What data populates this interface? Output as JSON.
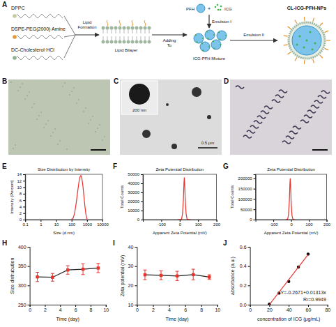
{
  "panel_labels": [
    "A",
    "B",
    "C",
    "D",
    "E",
    "F",
    "G",
    "H",
    "I",
    "J"
  ],
  "diagram": {
    "lipids": [
      "DPPC",
      "DSPE-PEG(2000) Amine",
      "DC-Cholesterol·HCl"
    ],
    "step1": "Lipid Formation",
    "bilayer": "Lipid Bilayer",
    "adding": "Adding To",
    "pfh": "PFH",
    "plus": "+",
    "icg": "ICG",
    "emulsion1": "Emulsion I",
    "mixture": "ICG-PFH Mixture",
    "emulsion2": "Emulsion II",
    "product": "CL-ICG-PFH-NPs"
  },
  "images": {
    "C": {
      "inset_scale": "200 nm",
      "scale_bar": "0.5 μm"
    }
  },
  "chart_data": [
    {
      "type": "line",
      "title": "Size Distribution by Intensity",
      "x_label": "Size (d.nm)",
      "y_label": "Intensity (Percent)",
      "log": "x",
      "x": [
        100,
        130,
        160,
        200,
        250,
        300,
        350,
        400,
        460,
        530,
        620,
        720,
        850,
        1000
      ],
      "series": [
        {
          "color": "#e8322b",
          "values": [
            0,
            0.6,
            2.2,
            5.2,
            8.8,
            11.6,
            13.2,
            13.6,
            12.8,
            10.8,
            7.6,
            4.4,
            1.6,
            0.2
          ]
        }
      ],
      "xlim": [
        0.1,
        10000
      ],
      "xticks": [
        0.1,
        1,
        10,
        100,
        1000,
        10000
      ],
      "ylim": [
        0,
        14
      ],
      "yticks": [
        0,
        2,
        4,
        6,
        8,
        10,
        12,
        14
      ]
    },
    {
      "type": "line",
      "title": "Zeta Potential Distribution",
      "x_label": "Apparent Zeta Potential (mV)",
      "y_label": "Total Counts",
      "x": [
        -10,
        0,
        10,
        15,
        20,
        23,
        25,
        27,
        30,
        35,
        40,
        50,
        60
      ],
      "series": [
        {
          "color": "#e8322b",
          "values": [
            0,
            0,
            600,
            6000,
            22000,
            40000,
            46500,
            40000,
            22000,
            6000,
            600,
            0,
            0
          ]
        }
      ],
      "xlim": [
        -200,
        200
      ],
      "xticks": [
        -100,
        0,
        100,
        200
      ],
      "ylim": [
        0,
        50000
      ],
      "yticks": [
        0,
        10000,
        20000,
        30000,
        40000,
        50000
      ]
    },
    {
      "type": "line",
      "title": "Zeta Potential Distribution",
      "x_label": "Apparent Zeta Potential (mV)",
      "y_label": "Total Counts",
      "x": [
        -30,
        -20,
        -15,
        -10,
        -7,
        -5,
        -3,
        0,
        5,
        10,
        20
      ],
      "series": [
        {
          "color": "#e8322b",
          "values": [
            0,
            2000,
            20000,
            90000,
            170000,
            200000,
            170000,
            90000,
            20000,
            2000,
            0
          ]
        }
      ],
      "xlim": [
        -200,
        200
      ],
      "xticks": [
        -100,
        0,
        100,
        200
      ],
      "ylim": [
        0,
        220000
      ],
      "yticks": [
        0,
        50000,
        100000,
        150000,
        200000
      ]
    },
    {
      "type": "line",
      "x_label": "Time (day)",
      "y_label": "Size distrubution",
      "marker": "square",
      "x": [
        1,
        3,
        5,
        7,
        9
      ],
      "series": [
        {
          "color": "#e8322b",
          "values": [
            322,
            321,
            340,
            342,
            345
          ],
          "errors": [
            12,
            10,
            11,
            14,
            12
          ]
        }
      ],
      "xlim": [
        0,
        10
      ],
      "xticks": [
        0,
        2,
        4,
        6,
        8,
        10
      ],
      "ylim": [
        250,
        400
      ],
      "yticks": [
        250,
        300,
        350,
        400
      ]
    },
    {
      "type": "line",
      "x_label": "Time (day)",
      "y_label": "Zeta potential (mV)",
      "marker": "square",
      "x": [
        1,
        3,
        5,
        7,
        9
      ],
      "series": [
        {
          "color": "#e8322b",
          "values": [
            25.5,
            25.2,
            24.9,
            25.6,
            24.3
          ],
          "errors": [
            2.5,
            2.3,
            2.4,
            2.8,
            1.2
          ]
        }
      ],
      "xlim": [
        0,
        10
      ],
      "xticks": [
        0,
        2,
        4,
        6,
        8,
        10
      ],
      "ylim": [
        10,
        40
      ],
      "yticks": [
        10,
        20,
        30,
        40
      ]
    },
    {
      "type": "scatter",
      "x_label": "concentration of ICG (μg/mL)",
      "y_label": "absorbance (a.u.)",
      "annotations": [
        "Y=-0.2671+0.01313x",
        "R²=0.9949"
      ],
      "series": [
        {
          "type": "scatter",
          "color": "#000000",
          "marker": "circle",
          "x": [
            20,
            30,
            40,
            50,
            60
          ],
          "values": [
            0.005,
            0.12,
            0.24,
            0.39,
            0.525
          ]
        },
        {
          "type": "line",
          "color": "#e8322b",
          "x": [
            20,
            60
          ],
          "values": [
            0.0,
            0.52
          ]
        }
      ],
      "xlim": [
        0,
        80
      ],
      "xticks": [
        0,
        20,
        40,
        60,
        80
      ],
      "ylim": [
        0,
        0.6
      ],
      "yticks": [
        {
          "value": 0,
          "label": "0.0"
        },
        0.2,
        0.4,
        0.6
      ]
    }
  ]
}
